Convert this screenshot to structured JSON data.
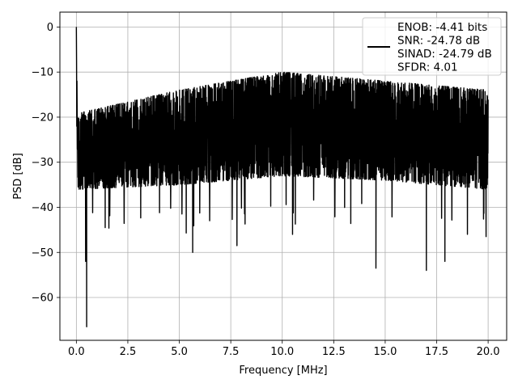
{
  "chart_data": {
    "type": "line",
    "title": "",
    "xlabel": "Frequency [MHz]",
    "ylabel": "PSD [dB]",
    "xlim": [
      -0.8,
      20.9
    ],
    "ylim": [
      -69.5,
      3.3
    ],
    "grid": true,
    "xticks": [
      0.0,
      2.5,
      5.0,
      7.5,
      10.0,
      12.5,
      15.0,
      17.5,
      20.0
    ],
    "xtick_labels": [
      "0.0",
      "2.5",
      "5.0",
      "7.5",
      "10.0",
      "12.5",
      "15.0",
      "17.5",
      "20.0"
    ],
    "yticks": [
      0,
      -10,
      -20,
      -30,
      -40,
      -50,
      -60
    ],
    "ytick_labels": [
      "0",
      "−10",
      "−20",
      "−30",
      "−40",
      "−50",
      "−60"
    ],
    "legend_position": "top-right",
    "legend_lines": [
      "ENOB: -4.41 bits",
      "SNR: -24.78 dB",
      "SINAD: -24.79 dB",
      "SFDR: 4.01"
    ],
    "series": [
      {
        "color": "#000000",
        "description": "noise-like power spectral density trace from 0 to 20 MHz",
        "x_range": [
          0.0,
          20.0
        ],
        "peak": {
          "x": 0.0,
          "y": 0.0
        },
        "upper_envelope_db": {
          "x": [
            0.2,
            5,
            10,
            15,
            20
          ],
          "y": [
            -17,
            -12,
            -8,
            -10,
            -12
          ]
        },
        "lower_envelope_db": {
          "x": [
            0.2,
            5,
            10,
            15,
            20
          ],
          "y": [
            -38,
            -37,
            -35,
            -36,
            -38
          ]
        },
        "notable_dips": [
          {
            "x": 0.5,
            "y": -66.5
          },
          {
            "x": 0.45,
            "y": -52
          },
          {
            "x": 14.55,
            "y": -53.5
          },
          {
            "x": 17.0,
            "y": -54
          },
          {
            "x": 17.9,
            "y": -52
          },
          {
            "x": 5.65,
            "y": -50
          },
          {
            "x": 7.8,
            "y": -48.5
          },
          {
            "x": 1.4,
            "y": -44.5
          },
          {
            "x": 10.5,
            "y": -46
          },
          {
            "x": 19.9,
            "y": -46.5
          }
        ]
      }
    ]
  }
}
